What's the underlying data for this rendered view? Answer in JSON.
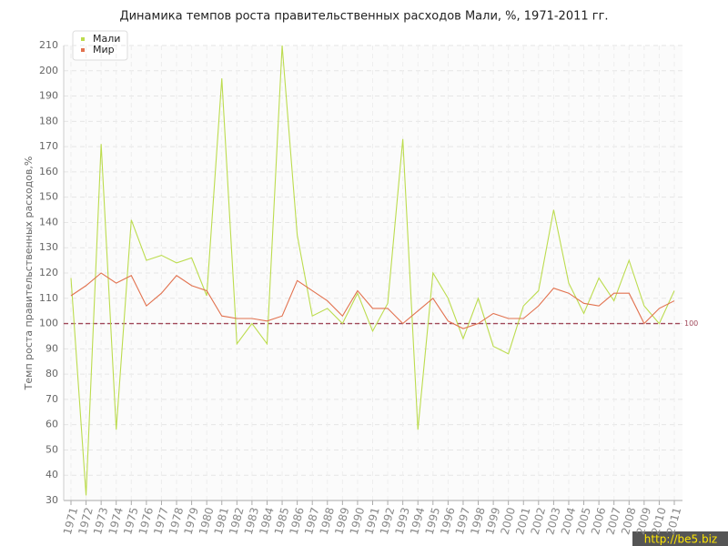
{
  "chart_data": {
    "type": "line",
    "title": "Динамика темпов роста правительственных расходов Мали, %, 1971-2011 гг.",
    "y_label": "Темп роста правительственных расходов,%",
    "categories": [
      "1971",
      "1972",
      "1973",
      "1974",
      "1975",
      "1976",
      "1977",
      "1978",
      "1979",
      "1980",
      "1981",
      "1982",
      "1983",
      "1984",
      "1985",
      "1986",
      "1987",
      "1988",
      "1989",
      "1990",
      "1991",
      "1992",
      "1993",
      "1994",
      "1995",
      "1996",
      "1997",
      "1998",
      "1999",
      "2000",
      "2001",
      "2002",
      "2003",
      "2004",
      "2005",
      "2006",
      "2007",
      "2008",
      "2009",
      "2010",
      "2011"
    ],
    "series": [
      {
        "name": "Мали",
        "color": "#bcdc4e",
        "values": [
          118,
          32,
          171,
          58,
          141,
          125,
          127,
          124,
          126,
          111,
          197,
          92,
          100,
          92,
          210,
          135,
          103,
          106,
          100,
          112,
          97,
          108,
          173,
          58,
          120,
          110,
          94,
          110,
          91,
          88,
          107,
          113,
          145,
          116,
          104,
          118,
          109,
          125,
          107,
          100,
          113
        ]
      },
      {
        "name": "Мир",
        "color": "#e2724f",
        "values": [
          111,
          115,
          120,
          116,
          119,
          107,
          112,
          119,
          115,
          113,
          103,
          102,
          102,
          101,
          103,
          117,
          113,
          109,
          103,
          113,
          106,
          106,
          100,
          105,
          110,
          101,
          98,
          100,
          104,
          102,
          102,
          107,
          114,
          112,
          108,
          107,
          112,
          112,
          100,
          106,
          109
        ]
      }
    ],
    "ylim": [
      30,
      210
    ],
    "yticks": [
      30,
      40,
      50,
      60,
      70,
      80,
      90,
      100,
      110,
      120,
      130,
      140,
      150,
      160,
      170,
      180,
      190,
      200,
      210
    ],
    "reference_line": 100,
    "reference_color": "#a0485a",
    "grid": true,
    "legend": "top-left",
    "watermark": "http://be5.biz"
  }
}
